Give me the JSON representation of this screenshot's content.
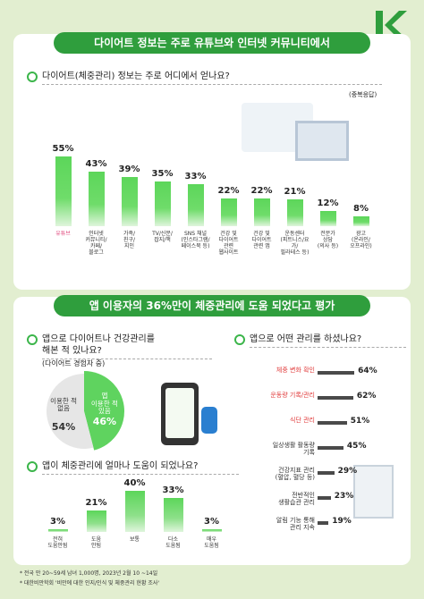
{
  "banners": [
    "다이어트 정보는 주로 유튜브와 인터넷 커뮤니티에서",
    "앱 이용자의 36%만이 체중관리에 도움 되었다고 평가"
  ],
  "chart_data": [
    {
      "type": "bar",
      "title": "다이어트(체중관리) 정보는 주로 어디에서 얻나요?",
      "note": "(중복응답)",
      "color": "#6fdc6a",
      "categories": [
        "유튜브",
        "인터넷\n커뮤니티/\n카페/\n블로그",
        "가족/\n친구/\n지인",
        "TV/신문/\n잡지/책",
        "SNS 채널\n(인스타그램/\n페이스북 등)",
        "건강 및\n다이어트\n관련\n웹사이트",
        "건강 및\n다이어트\n관련 앱",
        "운동센터\n(피트니스/요가/\n필라테스 등)",
        "전문가\n상담\n(의사 등)",
        "광고\n(온라인/\n오프라인)"
      ],
      "values": [
        55,
        43,
        39,
        35,
        33,
        22,
        22,
        21,
        12,
        8
      ],
      "value_labels": [
        "55%",
        "43%",
        "39%",
        "35%",
        "33%",
        "22%",
        "22%",
        "21%",
        "12%",
        "8%"
      ],
      "ylim": [
        0,
        60
      ]
    },
    {
      "type": "pie",
      "title": "앱으로 다이어트나 건강관리를\n해본 적 있나요?",
      "subtitle": "(다이어트 경험자 중)",
      "categories": [
        "앱\n이용한 적\n있음",
        "이용한 적\n없음"
      ],
      "values": [
        46,
        54
      ],
      "value_labels": [
        "46%",
        "54%"
      ],
      "colors": [
        "#5fd35f",
        "#e6e6e6"
      ]
    },
    {
      "type": "hbar",
      "title": "앱으로 어떤 관리를 하셨나요?",
      "color": "#4a4a4a",
      "categories": [
        "체중 변화 확인",
        "운동량 기록/관리",
        "식단 관리",
        "일상생활 활동량\n기록",
        "건강지표 관리\n(혈압, 혈당 등)",
        "전반적인\n생활습관 관리",
        "알림 기능 통해\n관리 지속"
      ],
      "values": [
        64,
        62,
        51,
        45,
        29,
        23,
        19
      ],
      "value_labels": [
        "64%",
        "62%",
        "51%",
        "45%",
        "29%",
        "23%",
        "19%"
      ],
      "xlim": [
        0,
        70
      ]
    },
    {
      "type": "bar",
      "title": "앱이 체중관리에 얼마나 도움이 되었나요?",
      "color": "#8ee08a",
      "categories": [
        "전혀\n도움안됨",
        "도움\n안됨",
        "보통",
        "다소\n도움됨",
        "매우\n도움됨"
      ],
      "values": [
        3,
        21,
        40,
        33,
        3
      ],
      "value_labels": [
        "3%",
        "21%",
        "40%",
        "33%",
        "3%"
      ],
      "ylim": [
        0,
        45
      ]
    }
  ],
  "footnotes": [
    "* 전국 만 20~59세 남녀 1,000명, 2023년 2월 10 ~14일",
    "* 대한비만학회 '비만에 대한 인지/인식 및 체중관리 현황 조사'"
  ]
}
